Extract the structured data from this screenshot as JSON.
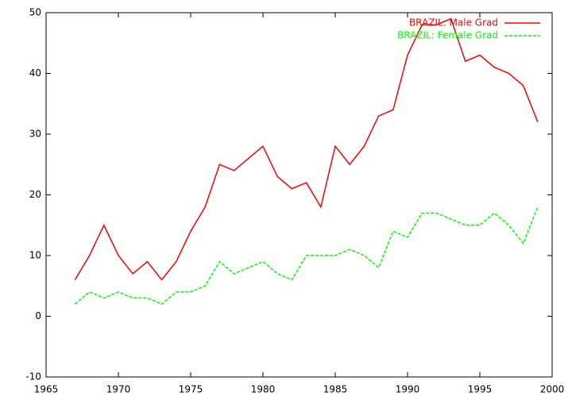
{
  "chart_data": {
    "type": "line",
    "x": [
      1967,
      1968,
      1969,
      1970,
      1971,
      1972,
      1973,
      1974,
      1975,
      1976,
      1977,
      1978,
      1979,
      1980,
      1981,
      1982,
      1983,
      1984,
      1985,
      1986,
      1987,
      1988,
      1989,
      1990,
      1991,
      1992,
      1993,
      1994,
      1995,
      1996,
      1997,
      1998,
      1999
    ],
    "series": [
      {
        "name": "BRAZIL: Male Grad",
        "color": "#ff0000",
        "dash": false,
        "values": [
          6,
          10,
          15,
          10,
          7,
          9,
          6,
          9,
          14,
          18,
          25,
          24,
          26,
          28,
          23,
          21,
          22,
          18,
          28,
          25,
          28,
          33,
          34,
          43,
          48,
          48,
          49,
          42,
          43,
          41,
          40,
          38,
          32
        ]
      },
      {
        "name": "BRAZIL: Female Grad",
        "color": "#00ff00",
        "dash": true,
        "values": [
          2,
          4,
          3,
          4,
          3,
          3,
          2,
          4,
          4,
          5,
          9,
          7,
          8,
          9,
          7,
          6,
          10,
          10,
          10,
          11,
          10,
          8,
          14,
          13,
          17,
          17,
          16,
          15,
          15,
          17,
          15,
          12,
          18
        ]
      }
    ],
    "xlim": [
      1965,
      2000
    ],
    "xticks": [
      1965,
      1970,
      1975,
      1980,
      1985,
      1990,
      1995,
      2000
    ],
    "ylim": [
      -10,
      50
    ],
    "yticks": [
      -10,
      0,
      10,
      20,
      30,
      40,
      50
    ],
    "grid": false,
    "legend": "top-right"
  }
}
